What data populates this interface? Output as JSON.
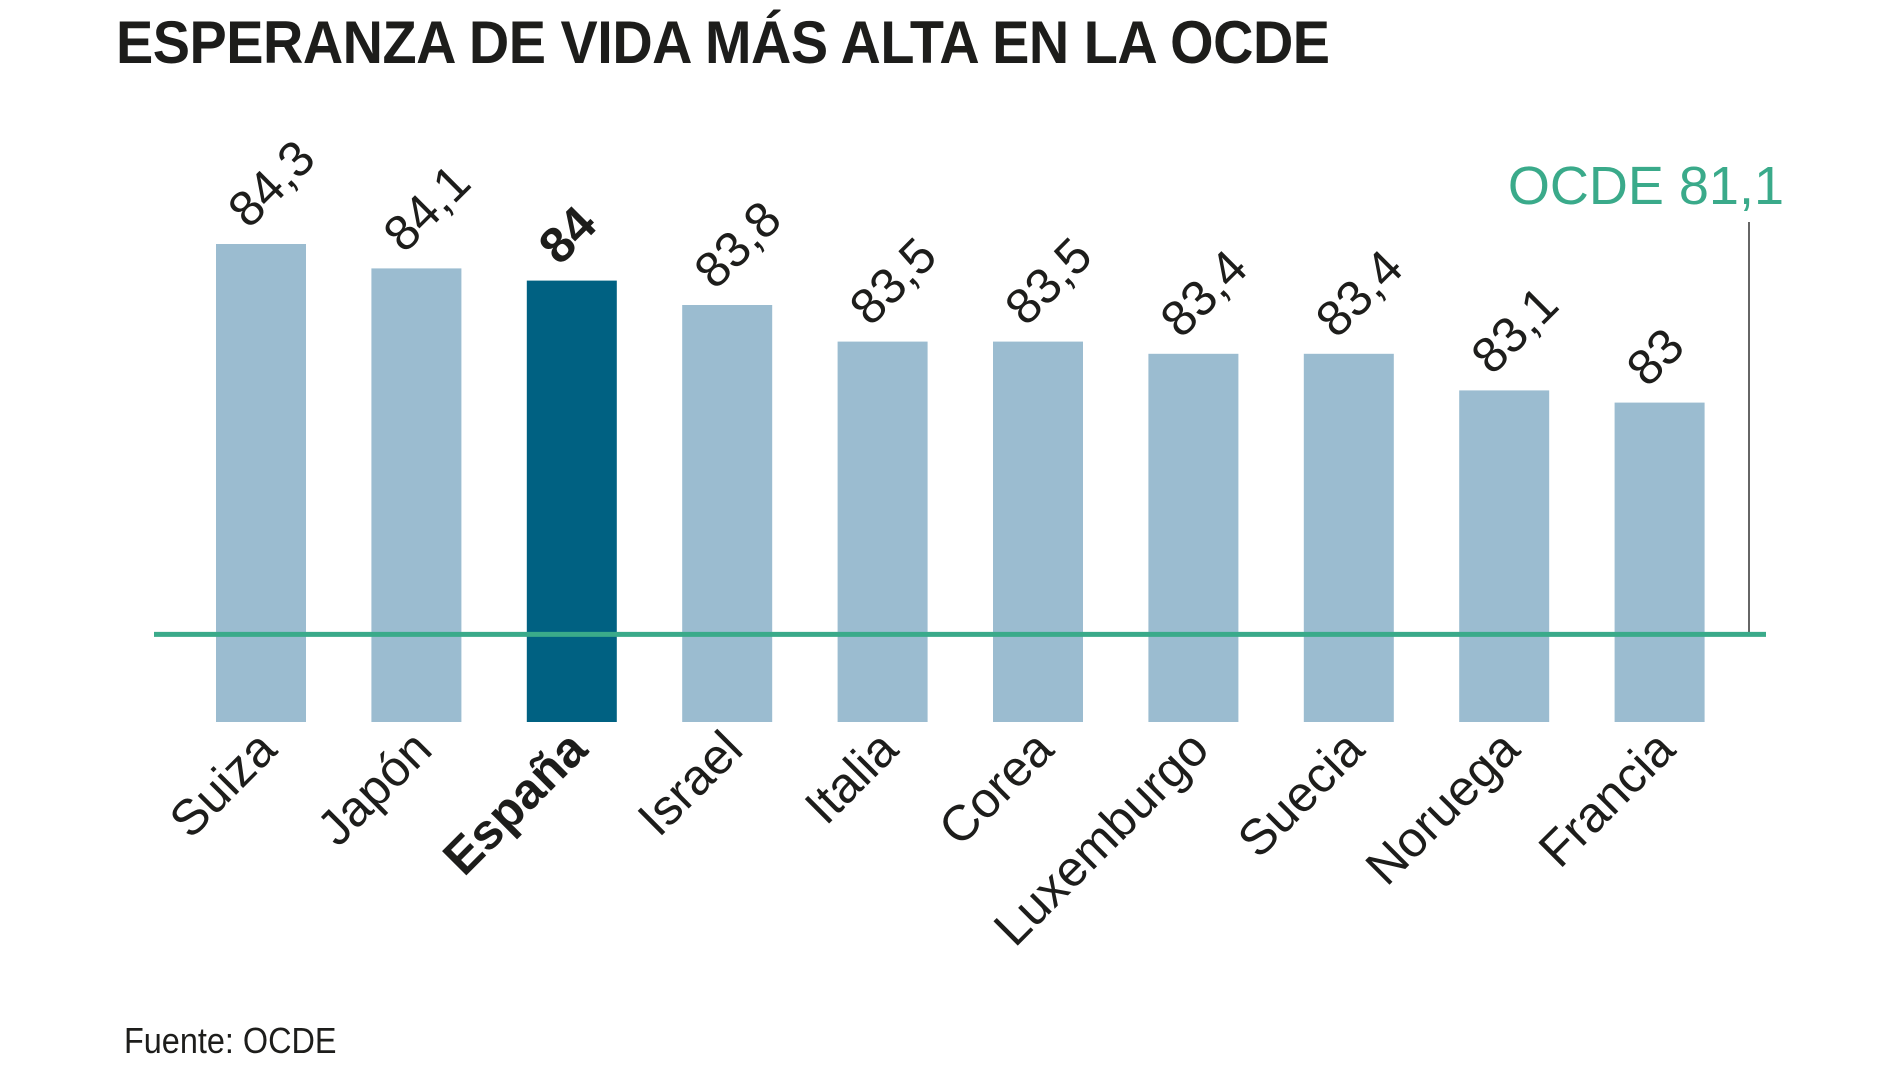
{
  "chart_data": {
    "type": "bar",
    "title": "ESPERANZA DE VIDA MÁS ALTA EN LA OCDE",
    "categories": [
      "Suiza",
      "Japón",
      "España",
      "Israel",
      "Italia",
      "Corea",
      "Luxemburgo",
      "Suecia",
      "Noruega",
      "Francia"
    ],
    "values": [
      84.3,
      84.1,
      84,
      83.8,
      83.5,
      83.5,
      83.4,
      83.4,
      83.1,
      83
    ],
    "value_labels": [
      "84,3",
      "84,1",
      "84",
      "83,8",
      "83,5",
      "83,5",
      "83,4",
      "83,4",
      "83,1",
      "83"
    ],
    "highlight": "España",
    "reference_line": {
      "label": "OCDE 81,1",
      "value": 81.1
    },
    "source": "Fuente: OCDE",
    "colors": {
      "bar": "#9bbcd0",
      "highlight": "#006182",
      "reference": "#3aaa8a",
      "text": "#1d1d1b"
    }
  }
}
